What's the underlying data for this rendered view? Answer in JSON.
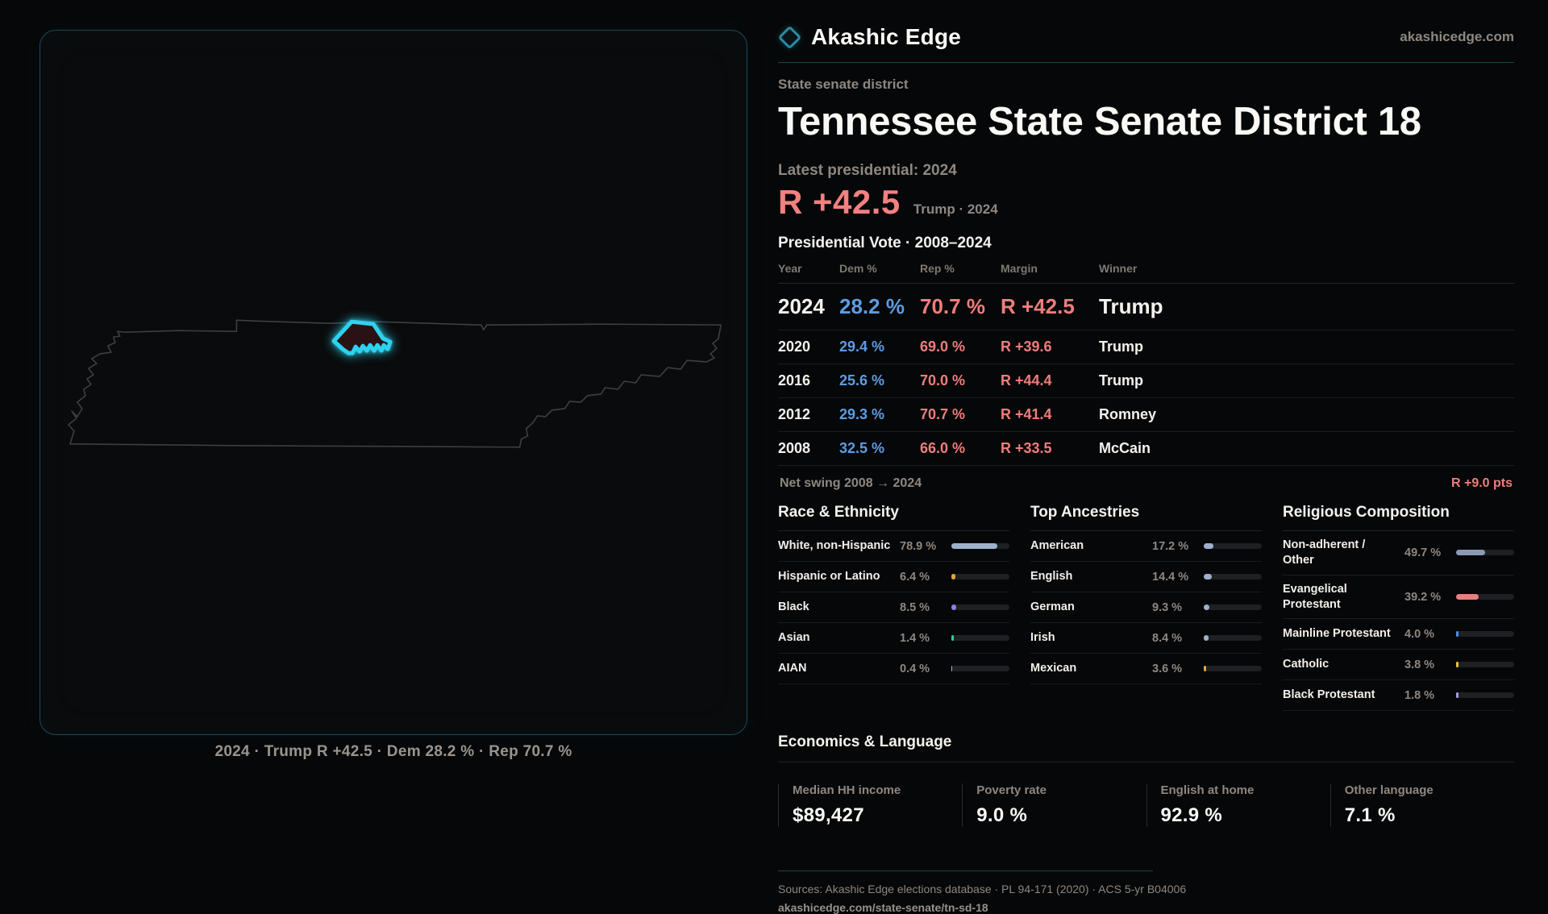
{
  "brand": {
    "name": "Akashic Edge",
    "domain": "akashicedge.com",
    "accent": "#2dd2ee"
  },
  "page": {
    "kicker": "State senate district",
    "title": "Tennessee State Senate District 18",
    "latest_label": "Latest presidential: 2024",
    "headline_margin": "R +42.5",
    "headline_detail": "Trump · 2024",
    "table_title": "Presidential Vote · 2008–2024"
  },
  "map": {
    "caption": "2024 · Trump R +42.5 · Dem 28.2 % · Rep 70.7 %"
  },
  "vote_table": {
    "columns": [
      "Year",
      "Dem %",
      "Rep %",
      "Margin",
      "Winner"
    ],
    "rows": [
      {
        "year": "2024",
        "dem": "28.2 %",
        "rep": "70.7 %",
        "margin": "R +42.5",
        "winner": "Trump",
        "emphasis": true
      },
      {
        "year": "2020",
        "dem": "29.4 %",
        "rep": "69.0 %",
        "margin": "R +39.6",
        "winner": "Trump",
        "emphasis": false
      },
      {
        "year": "2016",
        "dem": "25.6 %",
        "rep": "70.0 %",
        "margin": "R +44.4",
        "winner": "Trump",
        "emphasis": false
      },
      {
        "year": "2012",
        "dem": "29.3 %",
        "rep": "70.7 %",
        "margin": "R +41.4",
        "winner": "Romney",
        "emphasis": false
      },
      {
        "year": "2008",
        "dem": "32.5 %",
        "rep": "66.0 %",
        "margin": "R +33.5",
        "winner": "McCain",
        "emphasis": false
      }
    ],
    "net_swing_label": "Net swing 2008 → 2024",
    "net_swing_value": "R +9.0 pts"
  },
  "demographics": [
    {
      "title": "Race & Ethnicity",
      "rows": [
        {
          "label": "White, non-Hispanic",
          "value": "78.9 %",
          "pct": 78.9,
          "color": "#9db1cc"
        },
        {
          "label": "Hispanic or Latino",
          "value": "6.4 %",
          "pct": 6.4,
          "color": "#e5a33b"
        },
        {
          "label": "Black",
          "value": "8.5 %",
          "pct": 8.5,
          "color": "#8f7fe0"
        },
        {
          "label": "Asian",
          "value": "1.4 %",
          "pct": 1.4,
          "color": "#36c9a4"
        },
        {
          "label": "AIAN",
          "value": "0.4 %",
          "pct": 0.4,
          "color": "#9db1cc"
        }
      ]
    },
    {
      "title": "Top Ancestries",
      "rows": [
        {
          "label": "American",
          "value": "17.2 %",
          "pct": 17.2,
          "color": "#9db1cc"
        },
        {
          "label": "English",
          "value": "14.4 %",
          "pct": 14.4,
          "color": "#9db1cc"
        },
        {
          "label": "German",
          "value": "9.3 %",
          "pct": 9.3,
          "color": "#9db1cc"
        },
        {
          "label": "Irish",
          "value": "8.4 %",
          "pct": 8.4,
          "color": "#9db1cc"
        },
        {
          "label": "Mexican",
          "value": "3.6 %",
          "pct": 3.6,
          "color": "#e5a33b"
        }
      ]
    },
    {
      "title": "Religious Composition",
      "rows": [
        {
          "label": "Non-adherent / Other",
          "value": "49.7 %",
          "pct": 49.7,
          "color": "#8c99b3"
        },
        {
          "label": "Evangelical Protestant",
          "value": "39.2 %",
          "pct": 39.2,
          "color": "#e87e7e"
        },
        {
          "label": "Mainline Protestant",
          "value": "4.0 %",
          "pct": 4.0,
          "color": "#4d8ee8"
        },
        {
          "label": "Catholic",
          "value": "3.8 %",
          "pct": 3.8,
          "color": "#e6c53e"
        },
        {
          "label": "Black Protestant",
          "value": "1.8 %",
          "pct": 1.8,
          "color": "#a89ae8"
        }
      ]
    }
  ],
  "economics": {
    "title": "Economics & Language",
    "stats": [
      {
        "label": "Median HH income",
        "value": "$89,427"
      },
      {
        "label": "Poverty rate",
        "value": "9.0 %"
      },
      {
        "label": "English at home",
        "value": "92.9 %"
      },
      {
        "label": "Other language",
        "value": "7.1 %"
      }
    ]
  },
  "footer": {
    "sources": "Sources: Akashic Edge elections database · PL 94-171 (2020) · ACS 5-yr B04006",
    "permalink": "akashicedge.com/state-senate/tn-sd-18"
  }
}
